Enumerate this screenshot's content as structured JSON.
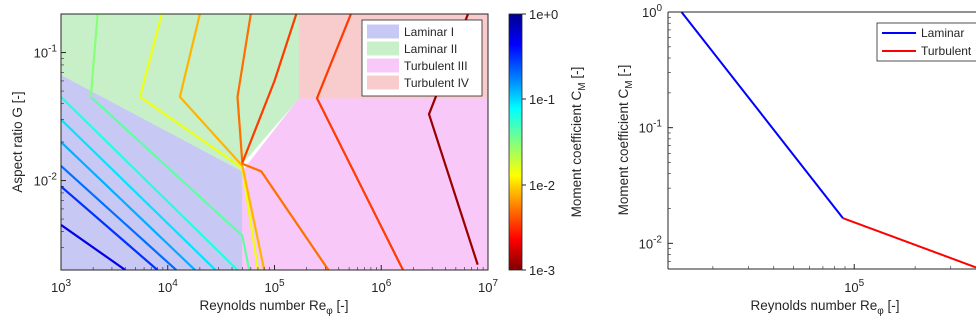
{
  "chart_data": [
    {
      "type": "contour",
      "xlabel": "Reynolds number Re",
      "xlabel_sub": "φ",
      "xlabel_unit": " [-]",
      "ylabel": "Aspect ratio G [-]",
      "x_scale": "log",
      "y_scale": "log",
      "xlim": [
        1000,
        10000000
      ],
      "ylim": [
        0.002,
        0.2
      ],
      "x_ticks": [
        {
          "value": 1000,
          "base": "10",
          "exp": "3"
        },
        {
          "value": 10000,
          "base": "10",
          "exp": "4"
        },
        {
          "value": 100000,
          "base": "10",
          "exp": "5"
        },
        {
          "value": 1000000,
          "base": "10",
          "exp": "6"
        },
        {
          "value": 10000000,
          "base": "10",
          "exp": "7"
        }
      ],
      "y_ticks": [
        {
          "value": 0.01,
          "base": "10",
          "exp": "-2"
        },
        {
          "value": 0.1,
          "base": "10",
          "exp": "-1"
        }
      ],
      "regions": [
        {
          "name": "Laminar I",
          "color": "#c8c8f5",
          "polygon": [
            [
              1000,
              0.002
            ],
            [
              1000,
              0.067
            ],
            [
              50000,
              0.0118
            ],
            [
              50000,
              0.002
            ]
          ]
        },
        {
          "name": "Laminar II",
          "color": "#c8f0c8",
          "polygon": [
            [
              1000,
              0.067
            ],
            [
              1000,
              0.2
            ],
            [
              170000,
              0.2
            ],
            [
              170000,
              0.044
            ],
            [
              50000,
              0.0135
            ],
            [
              50000,
              0.0118
            ]
          ]
        },
        {
          "name": "Turbulent III",
          "color": "#f8c8f8",
          "polygon": [
            [
              50000,
              0.002
            ],
            [
              50000,
              0.0118
            ],
            [
              170000,
              0.044
            ],
            [
              10000000,
              0.044
            ],
            [
              10000000,
              0.002
            ]
          ]
        },
        {
          "name": "Turbulent IV",
          "color": "#f8cccc",
          "polygon": [
            [
              170000,
              0.044
            ],
            [
              170000,
              0.2
            ],
            [
              10000000,
              0.2
            ],
            [
              10000000,
              0.044
            ]
          ]
        }
      ],
      "contour_lines": [
        {
          "level": 0.5,
          "points": [
            [
              1000,
              0.0045
            ],
            [
              4000,
              0.002
            ]
          ]
        },
        {
          "level": 0.3,
          "points": [
            [
              1000,
              0.009
            ],
            [
              8000,
              0.002
            ]
          ]
        },
        {
          "level": 0.2,
          "points": [
            [
              1000,
              0.013
            ],
            [
              12000,
              0.002
            ]
          ]
        },
        {
          "level": 0.13,
          "points": [
            [
              1000,
              0.02
            ],
            [
              18000,
              0.002
            ]
          ]
        },
        {
          "level": 0.09,
          "points": [
            [
              1000,
              0.03
            ],
            [
              28000,
              0.002
            ]
          ]
        },
        {
          "level": 0.06,
          "points": [
            [
              1000,
              0.045
            ],
            [
              45000,
              0.002
            ]
          ]
        },
        {
          "level": 0.04,
          "points": [
            [
              1900,
              0.045
            ],
            [
              50000,
              0.0037
            ],
            [
              58000,
              0.002
            ]
          ]
        },
        {
          "level": 0.03,
          "points": [
            [
              2200,
              0.2
            ],
            [
              1900,
              0.045
            ]
          ]
        },
        {
          "level": 0.015,
          "points": [
            [
              8800,
              0.2
            ],
            [
              5500,
              0.045
            ],
            [
              50000,
              0.0125
            ],
            [
              70000,
              0.002
            ]
          ]
        },
        {
          "level": 0.008,
          "points": [
            [
              20000,
              0.2
            ],
            [
              13000,
              0.045
            ],
            [
              50000,
              0.013
            ],
            [
              80000,
              0.002
            ]
          ]
        },
        {
          "level": 0.005,
          "points": [
            [
              60000,
              0.2
            ],
            [
              45000,
              0.045
            ],
            [
              50000,
              0.0135
            ],
            [
              75000,
              0.0118
            ],
            [
              320000,
              0.002
            ]
          ]
        },
        {
          "level": 0.0035,
          "points": [
            [
              160000,
              0.2
            ],
            [
              100000,
              0.06
            ],
            [
              50000,
              0.0138
            ]
          ]
        },
        {
          "level": 0.0035,
          "points": [
            [
              520000,
              0.2
            ],
            [
              250000,
              0.044
            ],
            [
              1600000,
              0.002
            ]
          ]
        },
        {
          "level": 0.0012,
          "points": [
            [
              6500000,
              0.2
            ],
            [
              2800000,
              0.033
            ],
            [
              8000000,
              0.0022
            ]
          ]
        }
      ],
      "legend": {
        "position": "top-right",
        "entries": [
          "Laminar I",
          "Laminar II",
          "Turbulent III",
          "Turbulent IV"
        ]
      },
      "colorbar": {
        "label": "Moment coefficient C",
        "label_sub": "M",
        "label_unit": " [-]",
        "scale": "log",
        "range": [
          0.001,
          1
        ],
        "tick_labels": [
          "1e+0",
          "1e-1",
          "1e-2",
          "1e-3"
        ],
        "colormap": [
          "#7f0000",
          "#ff0000",
          "#ff8000",
          "#ffff00",
          "#80ff80",
          "#00ffff",
          "#0080ff",
          "#0000ff",
          "#00008f"
        ]
      }
    },
    {
      "type": "line",
      "xlabel": "Reynolds number Re",
      "xlabel_sub": "φ",
      "xlabel_unit": " [-]",
      "ylabel": "Moment coefficient C",
      "ylabel_sub": "M",
      "ylabel_unit": " [-]",
      "x_scale": "log",
      "y_scale": "log",
      "xlim": [
        12000,
        400000
      ],
      "ylim": [
        0.006,
        1
      ],
      "x_ticks": [
        {
          "value": 100000,
          "base": "10",
          "exp": "5"
        }
      ],
      "y_ticks": [
        {
          "value": 0.01,
          "base": "10",
          "exp": "-2"
        },
        {
          "value": 0.1,
          "base": "10",
          "exp": "-1"
        },
        {
          "value": 1,
          "base": "10",
          "exp": "0"
        }
      ],
      "series": [
        {
          "name": "Laminar",
          "color": "#0000ff",
          "x": [
            14000,
            88000
          ],
          "y": [
            1.0,
            0.0165
          ]
        },
        {
          "name": "Turbulent",
          "color": "#ff0000",
          "x": [
            88000,
            400000
          ],
          "y": [
            0.0165,
            0.0062
          ]
        }
      ],
      "legend": {
        "position": "top-right",
        "entries": [
          "Laminar",
          "Turbulent"
        ]
      }
    }
  ]
}
